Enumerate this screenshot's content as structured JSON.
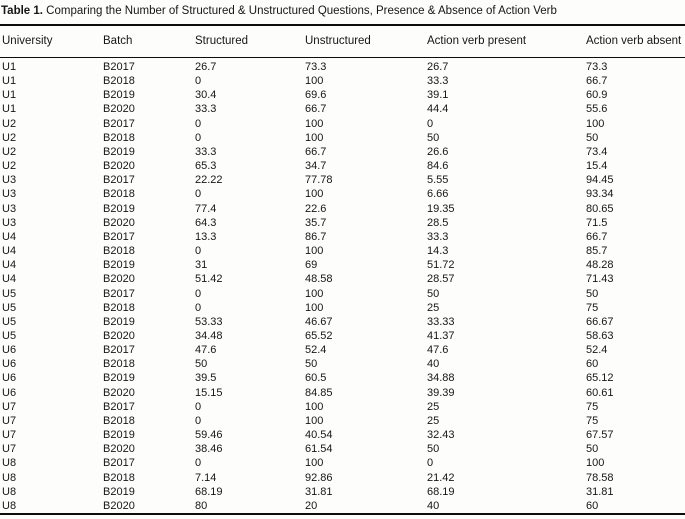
{
  "caption": {
    "label": "Table 1.",
    "text": "Comparing the Number of Structured & Unstructured Questions, Presence & Absence of Action Verb"
  },
  "table": {
    "columns": [
      "University",
      "Batch",
      "Structured",
      "Unstructured",
      "Action verb present",
      "Action verb absent"
    ],
    "rows": [
      [
        "U1",
        "B2017",
        "26.7",
        "73.3",
        "26.7",
        "73.3"
      ],
      [
        "U1",
        "B2018",
        "0",
        "100",
        "33.3",
        "66.7"
      ],
      [
        "U1",
        "B2019",
        "30.4",
        "69.6",
        "39.1",
        "60.9"
      ],
      [
        "U1",
        "B2020",
        "33.3",
        "66.7",
        "44.4",
        "55.6"
      ],
      [
        "U2",
        "B2017",
        "0",
        "100",
        "0",
        "100"
      ],
      [
        "U2",
        "B2018",
        "0",
        "100",
        "50",
        "50"
      ],
      [
        "U2",
        "B2019",
        "33.3",
        "66.7",
        "26.6",
        "73.4"
      ],
      [
        "U2",
        "B2020",
        "65.3",
        "34.7",
        "84.6",
        "15.4"
      ],
      [
        "U3",
        "B2017",
        "22.22",
        "77.78",
        "5.55",
        "94.45"
      ],
      [
        "U3",
        "B2018",
        "0",
        "100",
        "6.66",
        "93.34"
      ],
      [
        "U3",
        "B2019",
        "77.4",
        "22.6",
        "19.35",
        "80.65"
      ],
      [
        "U3",
        "B2020",
        "64.3",
        "35.7",
        "28.5",
        "71.5"
      ],
      [
        "U4",
        "B2017",
        "13.3",
        "86.7",
        "33.3",
        "66.7"
      ],
      [
        "U4",
        "B2018",
        "0",
        "100",
        "14.3",
        "85.7"
      ],
      [
        "U4",
        "B2019",
        "31",
        "69",
        "51.72",
        "48.28"
      ],
      [
        "U4",
        "B2020",
        "51.42",
        "48.58",
        "28.57",
        "71.43"
      ],
      [
        "U5",
        "B2017",
        "0",
        "100",
        "50",
        "50"
      ],
      [
        "U5",
        "B2018",
        "0",
        "100",
        "25",
        "75"
      ],
      [
        "U5",
        "B2019",
        "53.33",
        "46.67",
        "33.33",
        "66.67"
      ],
      [
        "U5",
        "B2020",
        "34.48",
        "65.52",
        "41.37",
        "58.63"
      ],
      [
        "U6",
        "B2017",
        "47.6",
        "52.4",
        "47.6",
        "52.4"
      ],
      [
        "U6",
        "B2018",
        "50",
        "50",
        "40",
        "60"
      ],
      [
        "U6",
        "B2019",
        "39.5",
        "60.5",
        "34.88",
        "65.12"
      ],
      [
        "U6",
        "B2020",
        "15.15",
        "84.85",
        "39.39",
        "60.61"
      ],
      [
        "U7",
        "B2017",
        "0",
        "100",
        "25",
        "75"
      ],
      [
        "U7",
        "B2018",
        "0",
        "100",
        "25",
        "75"
      ],
      [
        "U7",
        "B2019",
        "59.46",
        "40.54",
        "32.43",
        "67.57"
      ],
      [
        "U7",
        "B2020",
        "38.46",
        "61.54",
        "50",
        "50"
      ],
      [
        "U8",
        "B2017",
        "0",
        "100",
        "0",
        "100"
      ],
      [
        "U8",
        "B2018",
        "7.14",
        "92.86",
        "21.42",
        "78.58"
      ],
      [
        "U8",
        "B2019",
        "68.19",
        "31.81",
        "68.19",
        "31.81"
      ],
      [
        "U8",
        "B2020",
        "80",
        "20",
        "40",
        "60"
      ]
    ]
  },
  "colors": {
    "text": "#161616",
    "rule": "#0d0d0d",
    "background": "#fdfdfc"
  }
}
